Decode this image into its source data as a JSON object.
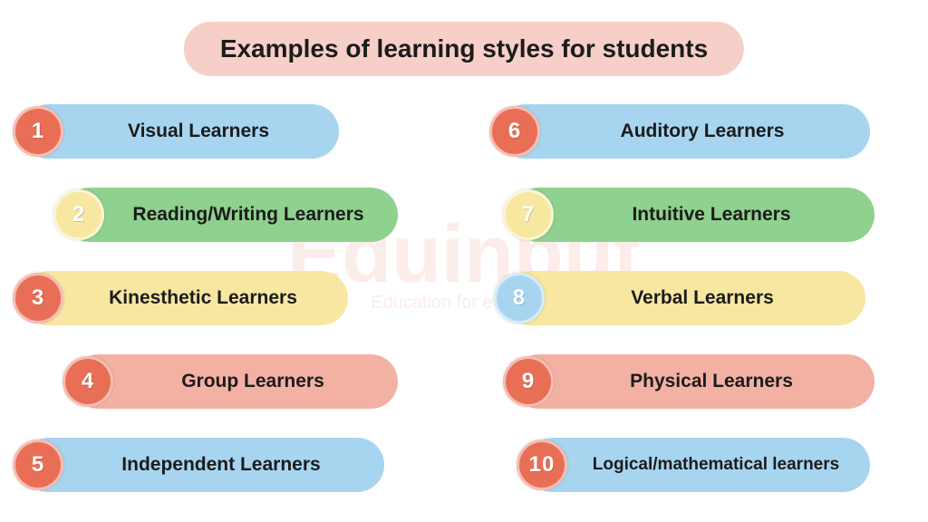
{
  "title": {
    "text": "Examples of learning styles for students",
    "bg": "#f6cfc9",
    "color": "#1b1b1b",
    "fontsize": 28
  },
  "watermark": {
    "big": "Eduinput",
    "small": "Education for everyone"
  },
  "palette": {
    "blue": "#a7d5f0",
    "green": "#8fd18e",
    "yellow": "#f7e7a1",
    "peach": "#f3b1a3",
    "orange": "#e86f55",
    "text": "#1b1b1b"
  },
  "layout": {
    "item_height": 70,
    "pill_height": 60,
    "badge_size": 56,
    "indent_step": 36
  },
  "left": [
    {
      "n": "1",
      "label": "Visual Learners",
      "pill_color": "#a7d5f0",
      "badge_color": "#e86f55",
      "indent": 0,
      "pill_width": 350
    },
    {
      "n": "2",
      "label": "Reading/Writing Learners",
      "pill_color": "#8fd18e",
      "badge_color": "#f7e7a1",
      "indent": 45,
      "pill_width": 370
    },
    {
      "n": "3",
      "label": "Kinesthetic Learners",
      "pill_color": "#f7e7a1",
      "badge_color": "#e86f55",
      "indent": 0,
      "pill_width": 360
    },
    {
      "n": "4",
      "label": "Group Learners",
      "pill_color": "#f3b1a3",
      "badge_color": "#e86f55",
      "indent": 55,
      "pill_width": 360
    },
    {
      "n": "5",
      "label": "Independent Learners",
      "pill_color": "#a7d5f0",
      "badge_color": "#e86f55",
      "indent": 0,
      "pill_width": 400
    }
  ],
  "right": [
    {
      "n": "6",
      "label": "Auditory Learners",
      "pill_color": "#a7d5f0",
      "badge_color": "#e86f55",
      "indent": 10,
      "pill_width": 410
    },
    {
      "n": "7",
      "label": "Intuitive Learners",
      "pill_color": "#8fd18e",
      "badge_color": "#f7e7a1",
      "indent": 25,
      "pill_width": 400
    },
    {
      "n": "8",
      "label": "Verbal Learners",
      "pill_color": "#f7e7a1",
      "badge_color": "#a7d5f0",
      "indent": 15,
      "pill_width": 400
    },
    {
      "n": "9",
      "label": "Physical Learners",
      "pill_color": "#f3b1a3",
      "badge_color": "#e86f55",
      "indent": 25,
      "pill_width": 400
    },
    {
      "n": "10",
      "label": "Logical/mathematical learners",
      "pill_color": "#a7d5f0",
      "badge_color": "#e86f55",
      "indent": 40,
      "pill_width": 380,
      "two_line": true
    }
  ]
}
